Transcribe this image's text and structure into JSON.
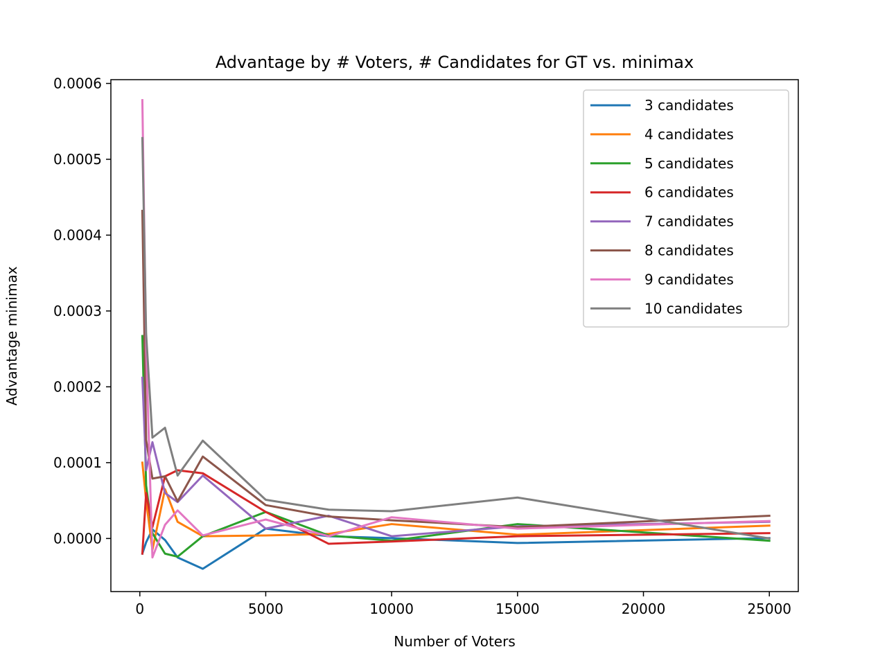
{
  "chart_data": {
    "type": "line",
    "title": "Advantage by # Voters, # Candidates for GT vs. minimax",
    "xlabel": "Number of Voters",
    "ylabel": "Advantage minimax",
    "xlim": [
      -1150,
      26150
    ],
    "ylim": [
      -7e-05,
      0.000605
    ],
    "x_ticks": [
      0,
      5000,
      10000,
      15000,
      20000,
      25000
    ],
    "x_tick_labels": [
      "0",
      "5000",
      "10000",
      "15000",
      "20000",
      "25000"
    ],
    "y_ticks": [
      0.0,
      0.0001,
      0.0002,
      0.0003,
      0.0004,
      0.0005,
      0.0006
    ],
    "y_tick_labels": [
      "0.0000",
      "0.0001",
      "0.0002",
      "0.0003",
      "0.0004",
      "0.0005",
      "0.0006"
    ],
    "grid": false,
    "legend_position": "top-right",
    "x": [
      100,
      250,
      500,
      1000,
      1500,
      2500,
      5000,
      7500,
      10000,
      15000,
      25000
    ],
    "series": [
      {
        "name": "3 candidates",
        "color": "#1f77b4",
        "values": [
          -2e-05,
          -5e-06,
          1.2e-05,
          -2e-06,
          -2.5e-05,
          -4e-05,
          1.3e-05,
          3e-06,
          5e-07,
          -6e-06,
          5e-07
        ]
      },
      {
        "name": "4 candidates",
        "color": "#ff7f0e",
        "values": [
          0.0001,
          5e-05,
          -1.5e-05,
          6.5e-05,
          2.2e-05,
          3e-06,
          4e-06,
          6e-06,
          1.9e-05,
          5e-06,
          1.7e-05
        ]
      },
      {
        "name": "5 candidates",
        "color": "#2ca02c",
        "values": [
          0.000267,
          7e-05,
          7e-06,
          -2e-05,
          -2.4e-05,
          3e-06,
          3.5e-05,
          4e-06,
          -3e-06,
          1.9e-05,
          -3e-06
        ]
      },
      {
        "name": "6 candidates",
        "color": "#d62728",
        "values": [
          -2e-05,
          6e-05,
          1.5e-05,
          8.2e-05,
          9e-05,
          8.6e-05,
          3.5e-05,
          -7e-06,
          -4e-06,
          3e-06,
          7e-06
        ]
      },
      {
        "name": "7 candidates",
        "color": "#9467bd",
        "values": [
          0.000212,
          9e-05,
          0.000127,
          6e-05,
          4.8e-05,
          8.3e-05,
          1.3e-05,
          3e-05,
          3e-06,
          1.6e-05,
          2.2e-05
        ]
      },
      {
        "name": "8 candidates",
        "color": "#8c564b",
        "values": [
          0.000432,
          0.00013,
          7.9e-05,
          8.2e-05,
          4.9e-05,
          0.000108,
          4.4e-05,
          2.9e-05,
          2.4e-05,
          1.5e-05,
          3e-05
        ]
      },
      {
        "name": "9 candidates",
        "color": "#e377c2",
        "values": [
          0.000578,
          0.00025,
          -2.5e-05,
          1.8e-05,
          3.7e-05,
          4e-06,
          2.5e-05,
          3e-06,
          2.8e-05,
          1.3e-05,
          2.3e-05
        ]
      },
      {
        "name": "10 candidates",
        "color": "#7f7f7f",
        "values": [
          0.000528,
          0.00027,
          0.000133,
          0.000146,
          8.3e-05,
          0.000129,
          5.1e-05,
          3.8e-05,
          3.6e-05,
          5.4e-05,
          0.0
        ]
      }
    ]
  }
}
